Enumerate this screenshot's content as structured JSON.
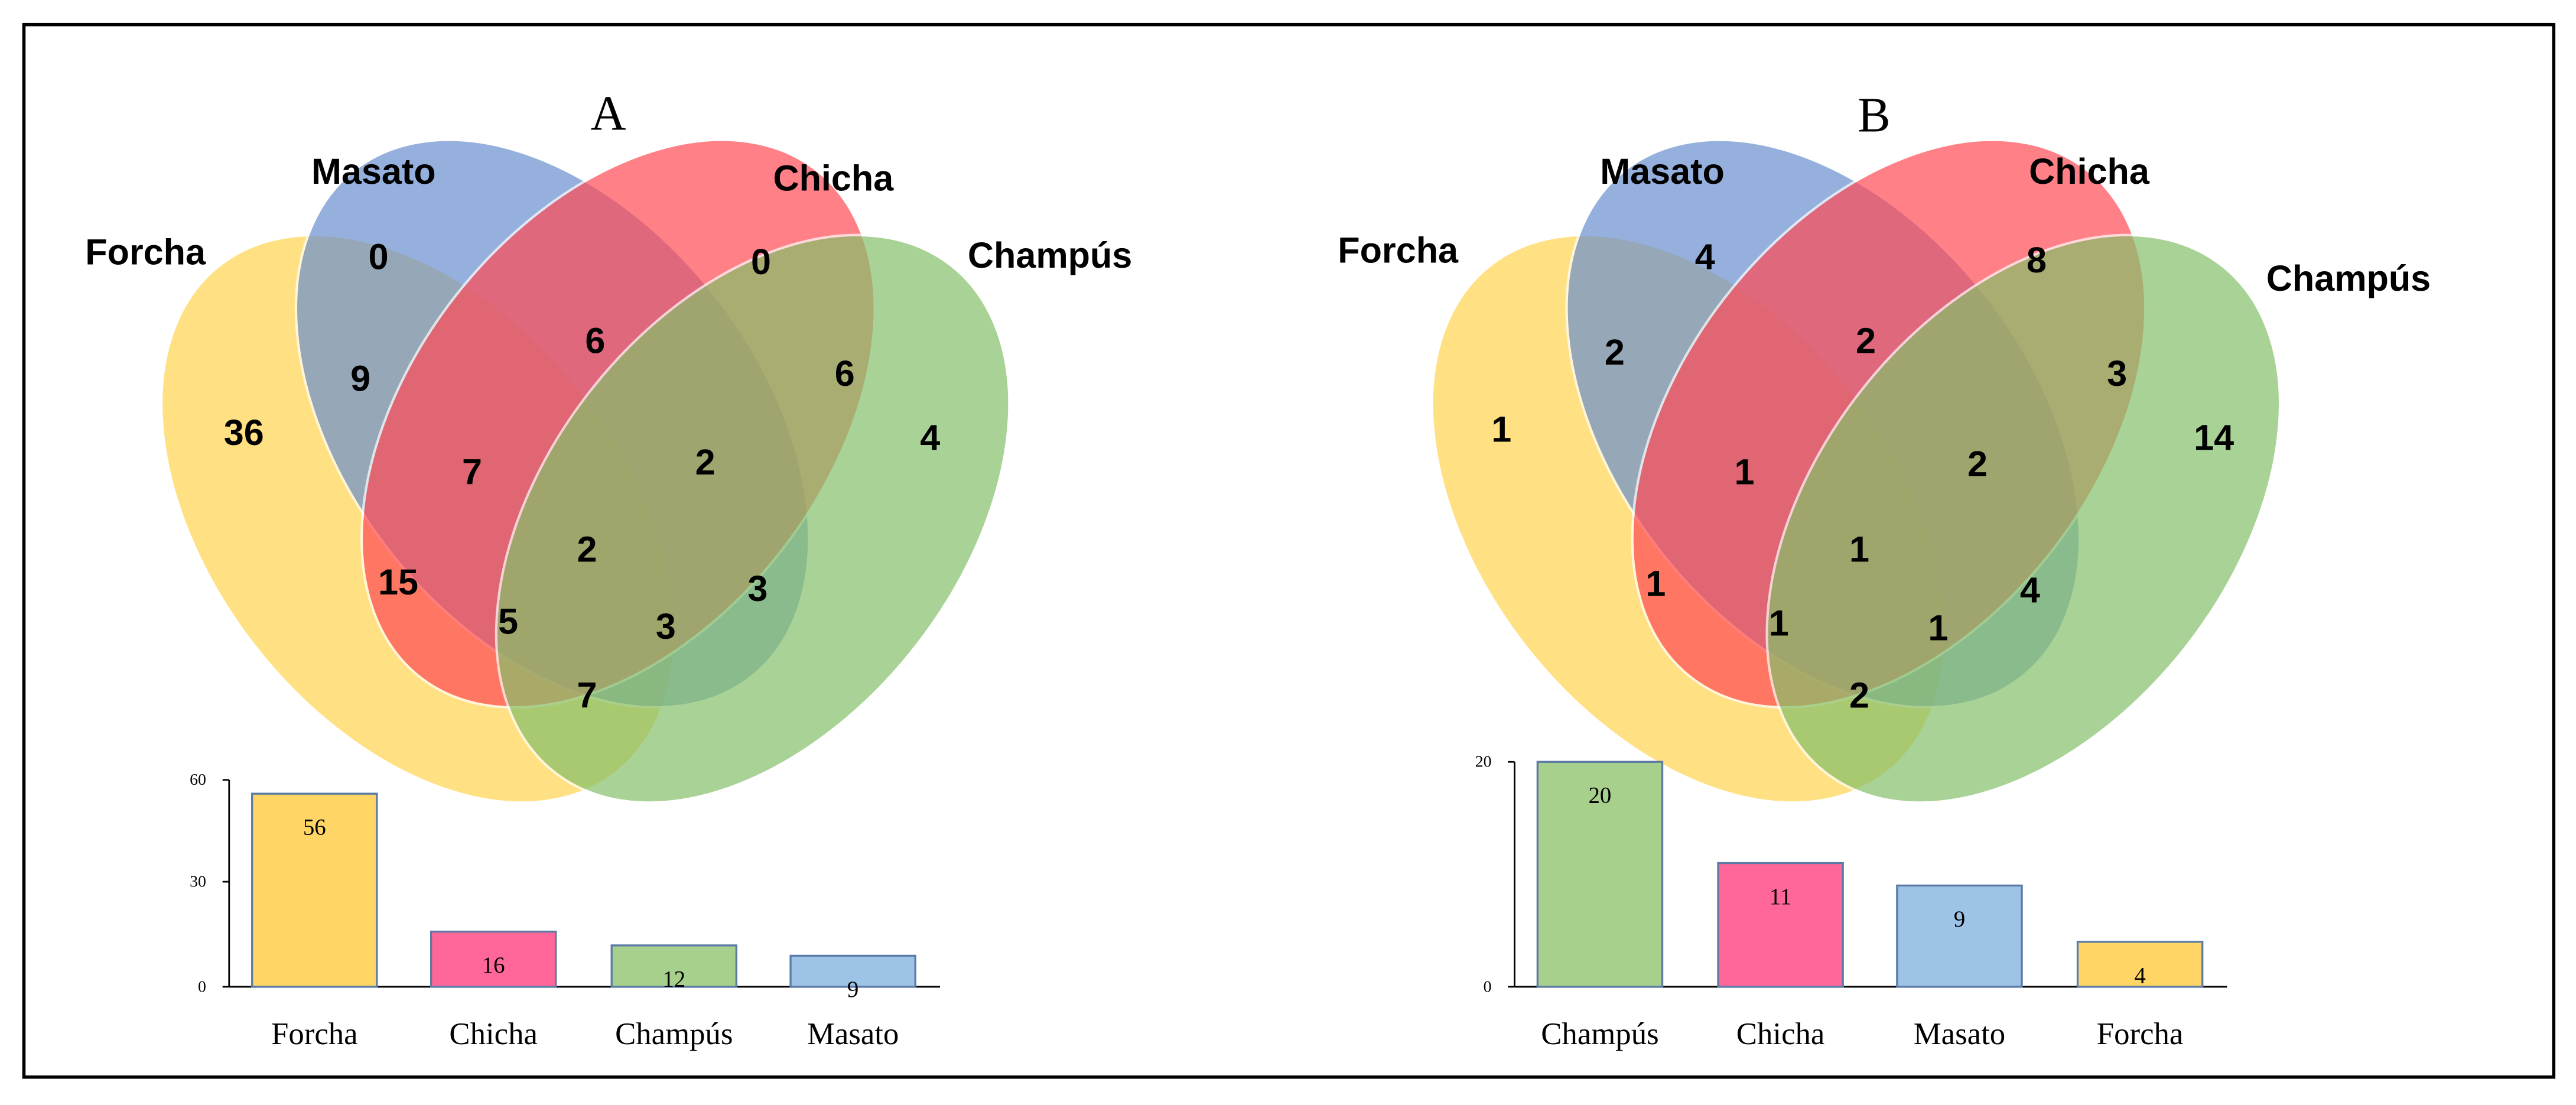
{
  "panels": [
    {
      "id": "A",
      "panel_label": "A",
      "set_labels": {
        "forcha": "Forcha",
        "masato": "Masato",
        "chicha": "Chicha",
        "champus": "Champús"
      },
      "regions": {
        "F": "36",
        "M": "0",
        "C": "0",
        "P": "4",
        "FM": "9",
        "MC": "6",
        "CP": "6",
        "FC": "15",
        "MP": "3",
        "FP": "7",
        "FMC": "7",
        "MCP": "2",
        "FCP": "5",
        "FMP": "3",
        "FMCP": "2"
      },
      "bars": {
        "type": "bar",
        "ytick_labels": [
          "0",
          "30",
          "60"
        ],
        "ylim": [
          0,
          60
        ],
        "categories": [
          "Forcha",
          "Chicha",
          "Champús",
          "Masato"
        ],
        "values": [
          56,
          16,
          12,
          9
        ],
        "value_labels": [
          "56",
          "16",
          "12",
          "9"
        ]
      }
    },
    {
      "id": "B",
      "panel_label": "B",
      "set_labels": {
        "forcha": "Forcha",
        "masato": "Masato",
        "chicha": "Chicha",
        "champus": "Champús"
      },
      "regions": {
        "F": "1",
        "M": "4",
        "C": "8",
        "P": "14",
        "FM": "2",
        "MC": "2",
        "CP": "3",
        "FC": "1",
        "MP": "4",
        "FP": "2",
        "FMC": "1",
        "MCP": "2",
        "FCP": "1",
        "FMP": "1",
        "FMCP": "1"
      },
      "bars": {
        "type": "bar",
        "ytick_labels": [
          "0",
          "20"
        ],
        "ylim": [
          0,
          20
        ],
        "categories": [
          "Champús",
          "Chicha",
          "Masato",
          "Forcha"
        ],
        "values": [
          20,
          11,
          9,
          4
        ],
        "value_labels": [
          "20",
          "11",
          "9",
          "4"
        ]
      }
    }
  ],
  "colors": {
    "forcha": "#FFD34E",
    "masato": "#6A8FD0",
    "chicha": "#FF4B55",
    "champus": "#86C06A",
    "bar_forcha": "#FFD666",
    "bar_chicha": "#FF6699",
    "bar_champus": "#A8D08D",
    "bar_masato": "#9DC3E6"
  }
}
